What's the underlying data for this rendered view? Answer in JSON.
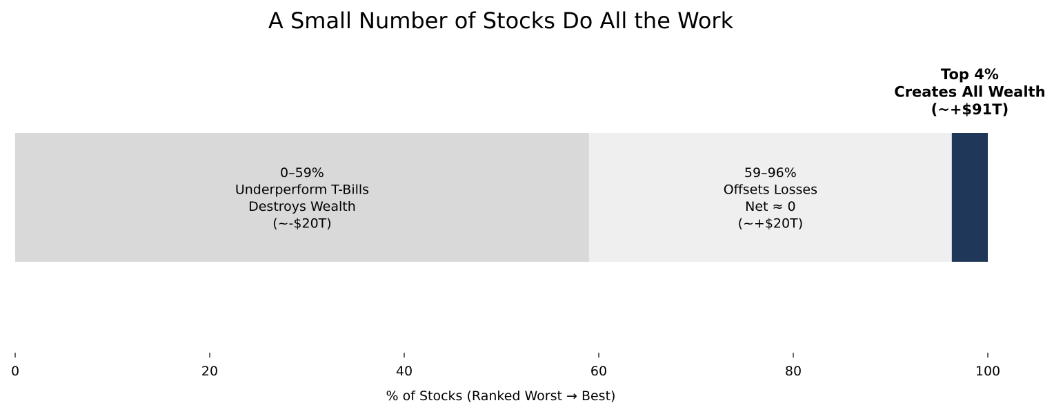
{
  "chart_data": {
    "type": "bar",
    "orientation": "horizontal",
    "stacked": true,
    "title": "A Small Number of Stocks Do All the Work",
    "xlabel": "% of Stocks (Ranked Worst → Best)",
    "ylabel": "",
    "xlim": [
      0,
      100
    ],
    "xticks": [
      0,
      20,
      40,
      60,
      80,
      100
    ],
    "grid": false,
    "segments": [
      {
        "start": 0,
        "end": 59,
        "color": "#d9d9d9",
        "label_lines": [
          "0–59%",
          "Underperform T-Bills",
          "Destroys Wealth",
          "(~-$20T)"
        ]
      },
      {
        "start": 59,
        "end": 96.3,
        "color": "#efefef",
        "label_lines": [
          "59–96%",
          "Offsets Losses",
          "Net ≈ 0",
          "(~+$20T)"
        ]
      },
      {
        "start": 96.3,
        "end": 100,
        "color": "#1f3759",
        "label_lines": []
      }
    ],
    "callout": {
      "segment_index": 2,
      "lines": [
        "Top 4%",
        "Creates All Wealth",
        "(~+$91T)"
      ]
    }
  }
}
